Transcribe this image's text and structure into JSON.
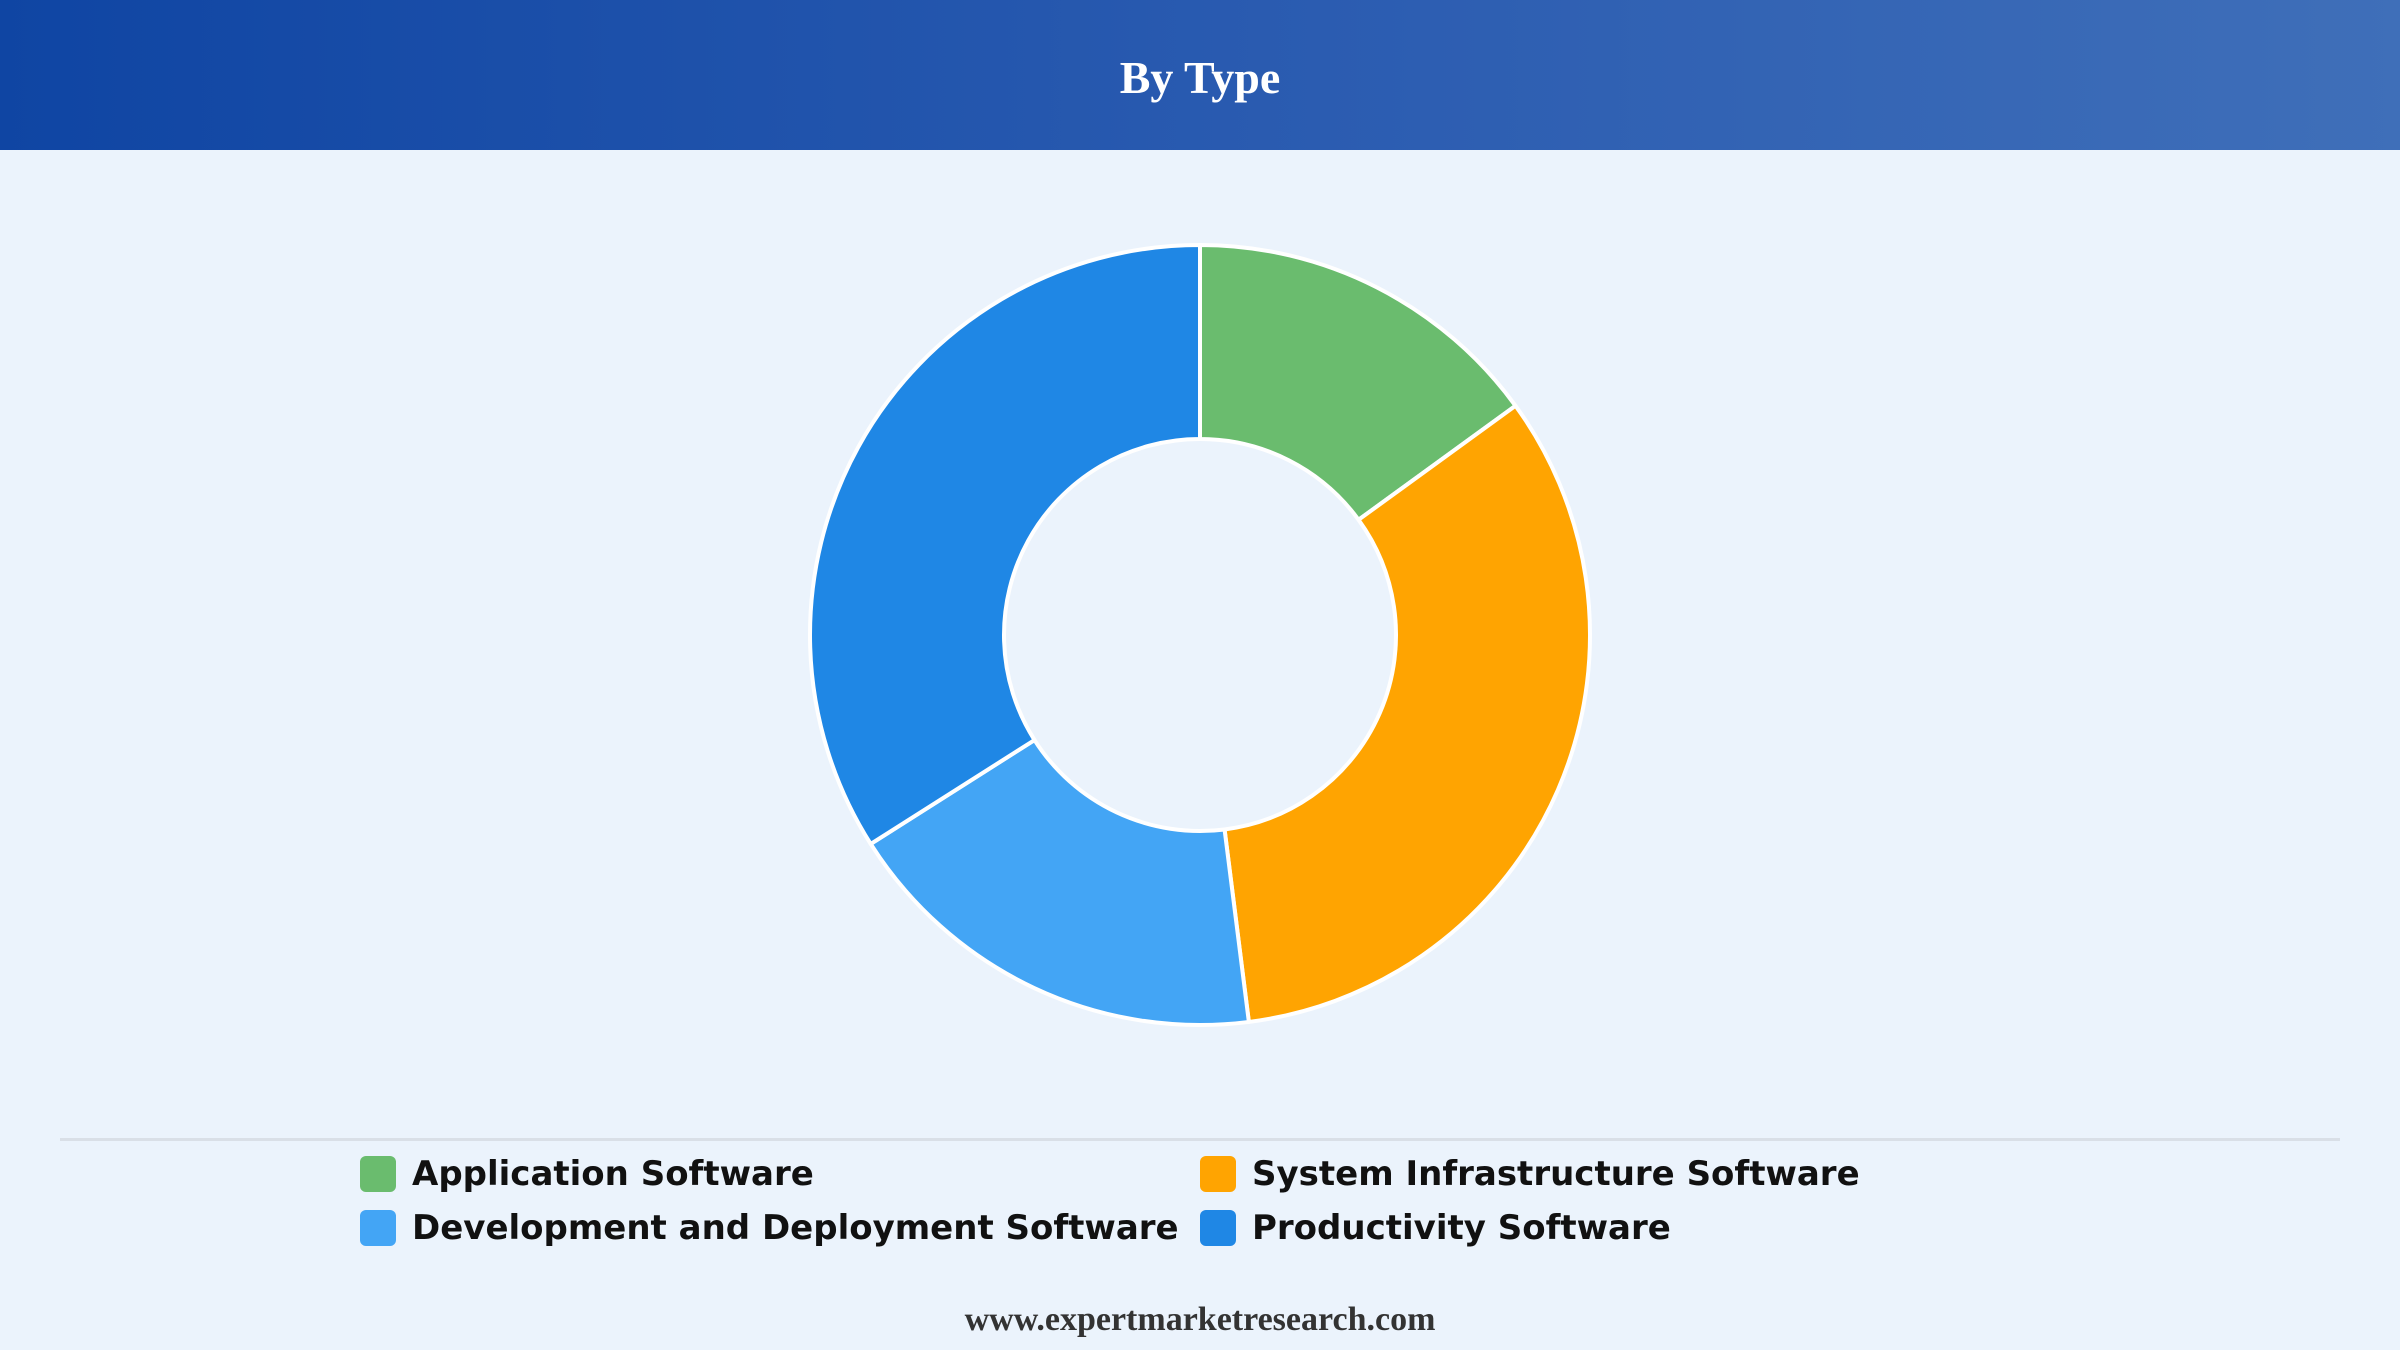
{
  "header": {
    "title": "By Type"
  },
  "chart_data": {
    "type": "pie",
    "variant": "donut",
    "title": "By Type",
    "categories": [
      "Application Software",
      "System Infrastructure Software",
      "Development and Deployment Software",
      "Productivity Software"
    ],
    "values": [
      15,
      33,
      18,
      34
    ],
    "colors": [
      "#6abc6e",
      "#ffa401",
      "#43a5f5",
      "#1f87e5"
    ],
    "legend_position": "bottom"
  },
  "footer": {
    "source": "www.expertmarketresearch.com"
  }
}
